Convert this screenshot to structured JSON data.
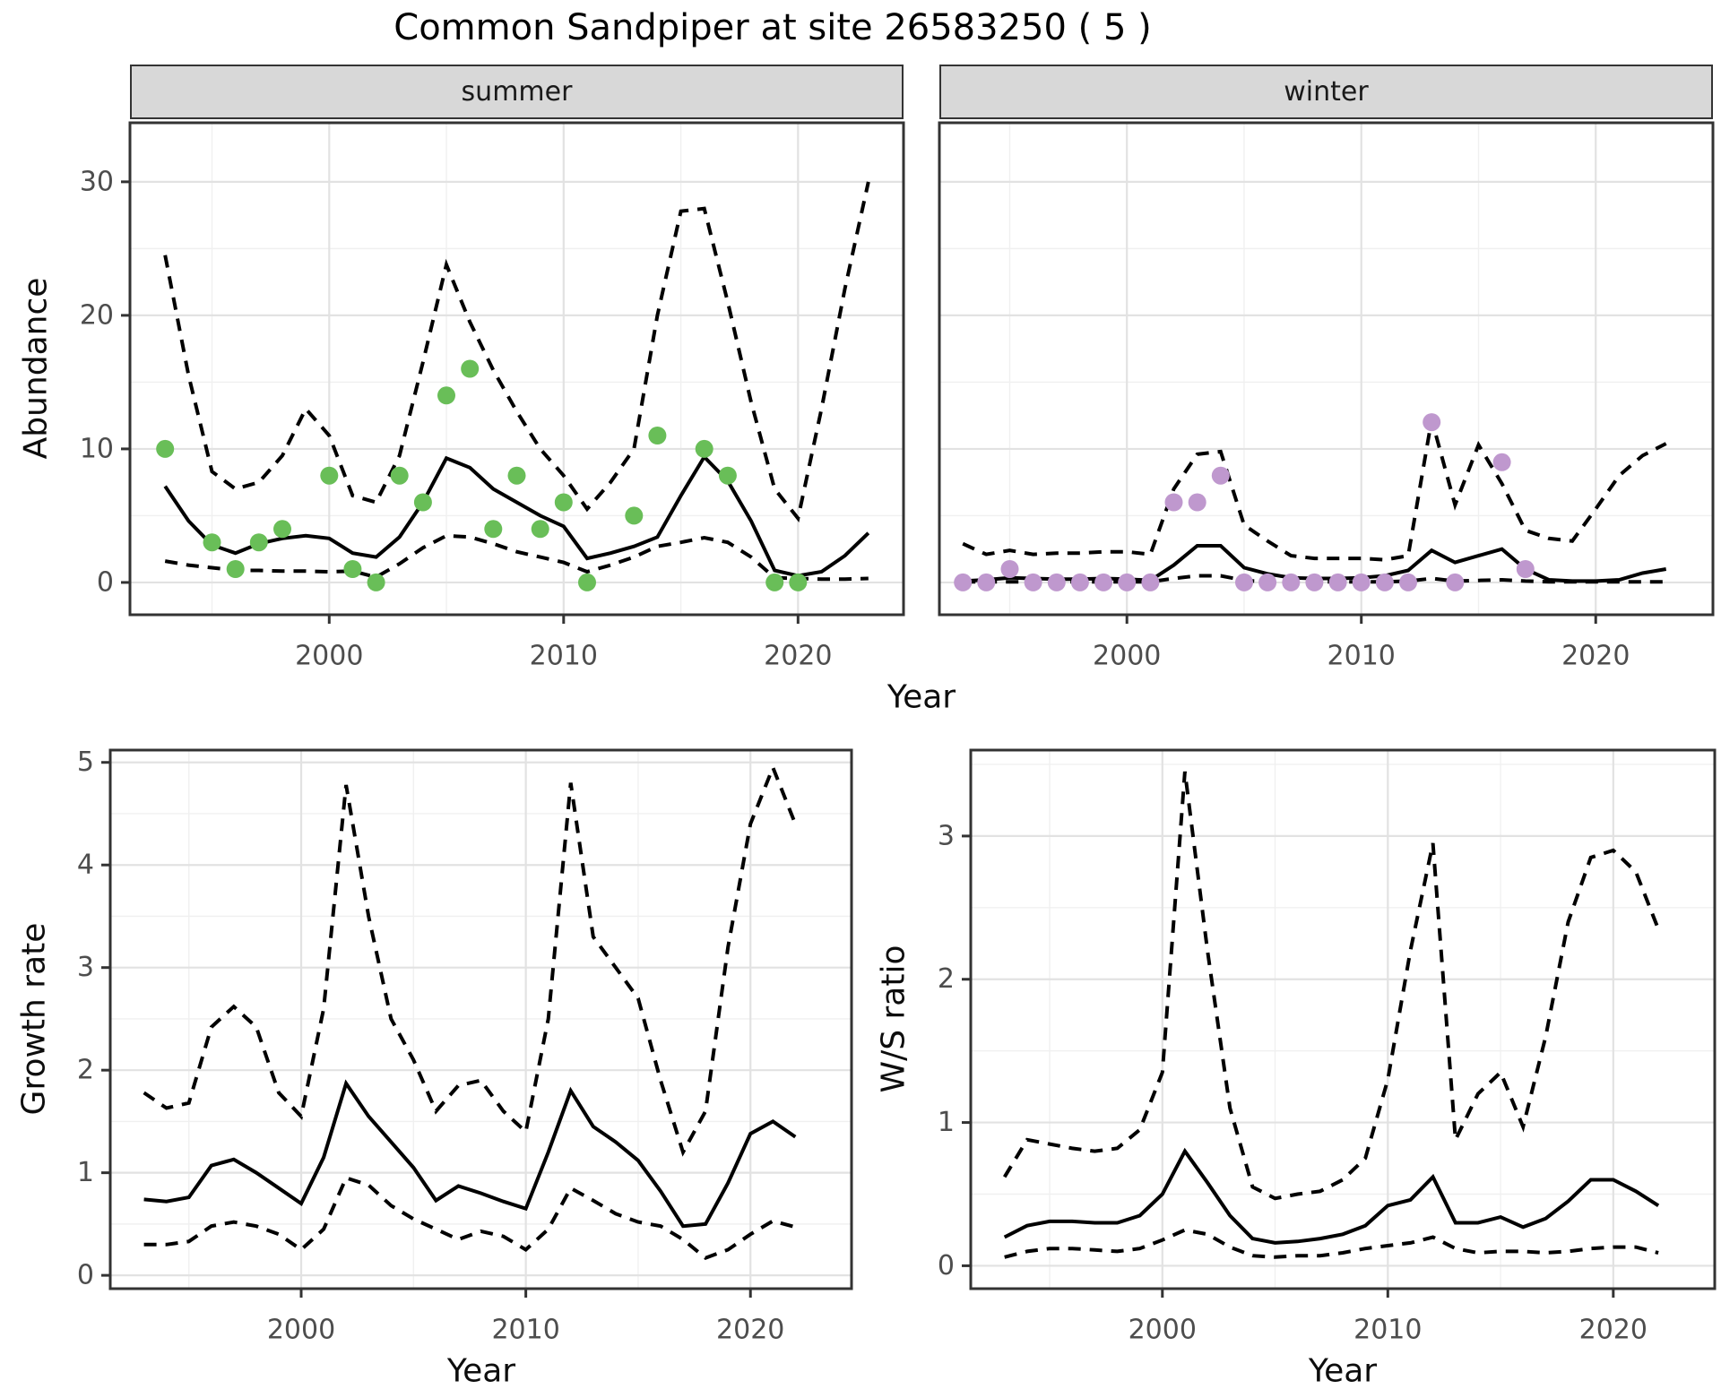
{
  "title": "Common Sandpiper at site 26583250 ( 5 )",
  "facets": {
    "summer": "summer",
    "winter": "winter"
  },
  "axis_labels": {
    "abundance": "Abundance",
    "growth_rate": "Growth rate",
    "ws_ratio": "W/S ratio",
    "year": "Year"
  },
  "colors": {
    "summer_points": "#69BE58",
    "winter_points": "#BF98CE",
    "line": "#000000",
    "grid_major": "#e2e2e2",
    "grid_minor": "#f0f0f0",
    "strip_bg": "#d8d8d8",
    "panel_border": "#333333",
    "tick_text": "#4d4d4d"
  },
  "chart_data": [
    {
      "id": "abundance_summer",
      "type": "line",
      "facet": "summer",
      "xlabel": "Year",
      "ylabel": "Abundance",
      "xlim": [
        1991.5,
        2024.5
      ],
      "ylim": [
        -2.42,
        34.42
      ],
      "x_major": [
        2000,
        2010,
        2020
      ],
      "x_minor": [
        1995,
        2005,
        2015
      ],
      "y_major": [
        0,
        10,
        20,
        30
      ],
      "y_minor": [
        5,
        15,
        25
      ],
      "grid": true,
      "years": [
        1993,
        1994,
        1995,
        1996,
        1997,
        1998,
        1999,
        2000,
        2001,
        2002,
        2003,
        2004,
        2005,
        2006,
        2007,
        2008,
        2009,
        2010,
        2011,
        2012,
        2013,
        2014,
        2015,
        2016,
        2017,
        2018,
        2019,
        2020,
        2021,
        2022,
        2023
      ],
      "series": [
        {
          "name": "mean",
          "style": "solid",
          "values": [
            7.2,
            4.6,
            2.8,
            2.2,
            2.9,
            3.3,
            3.5,
            3.3,
            2.2,
            1.9,
            3.4,
            6.0,
            9.3,
            8.6,
            7.0,
            6.0,
            5.0,
            4.2,
            1.8,
            2.2,
            2.7,
            3.4,
            6.5,
            9.4,
            7.6,
            4.6,
            0.9,
            0.5,
            0.8,
            2.0,
            3.7
          ]
        },
        {
          "name": "upper_ci",
          "style": "dashed",
          "values": [
            24.5,
            15.5,
            8.3,
            7.0,
            7.5,
            9.5,
            13.0,
            11.0,
            6.5,
            6.0,
            9.5,
            16.5,
            23.8,
            19.5,
            15.9,
            12.8,
            10.0,
            8.0,
            5.5,
            7.5,
            10.0,
            20.0,
            27.8,
            28.0,
            21.0,
            13.5,
            7.0,
            4.8,
            13.0,
            22.0,
            30.0
          ]
        },
        {
          "name": "lower_ci",
          "style": "dashed",
          "values": [
            1.6,
            1.3,
            1.1,
            0.9,
            0.9,
            0.85,
            0.85,
            0.8,
            0.85,
            0.4,
            1.4,
            2.6,
            3.5,
            3.4,
            2.9,
            2.3,
            1.9,
            1.5,
            0.8,
            1.3,
            1.9,
            2.7,
            3.0,
            3.35,
            3.0,
            1.9,
            0.35,
            0.3,
            0.25,
            0.25,
            0.3
          ]
        },
        {
          "name": "observed",
          "style": "points",
          "color_key": "summer_points",
          "values": [
            10,
            null,
            3,
            1,
            3,
            4,
            null,
            8,
            1,
            0,
            8,
            6,
            14,
            16,
            4,
            8,
            4,
            6,
            0,
            null,
            5,
            11,
            null,
            10,
            8,
            null,
            0,
            0,
            null,
            null,
            null
          ]
        }
      ]
    },
    {
      "id": "abundance_winter",
      "type": "line",
      "facet": "winter",
      "xlabel": "Year",
      "ylabel": "Abundance",
      "xlim": [
        1992,
        2025
      ],
      "ylim": [
        -2.42,
        34.42
      ],
      "x_major": [
        2000,
        2010,
        2020
      ],
      "x_minor": [
        1995,
        2005,
        2015
      ],
      "y_major": [
        0,
        10,
        20,
        30
      ],
      "y_minor": [
        5,
        15,
        25
      ],
      "grid": true,
      "years": [
        1993,
        1994,
        1995,
        1996,
        1997,
        1998,
        1999,
        2000,
        2001,
        2002,
        2003,
        2004,
        2005,
        2006,
        2007,
        2008,
        2009,
        2010,
        2011,
        2012,
        2013,
        2014,
        2015,
        2016,
        2017,
        2018,
        2019,
        2020,
        2021,
        2022,
        2023
      ],
      "series": [
        {
          "name": "mean",
          "style": "solid",
          "values": [
            0.1,
            0.2,
            0.35,
            0.3,
            0.25,
            0.25,
            0.3,
            0.25,
            0.15,
            1.3,
            2.75,
            2.75,
            1.1,
            0.65,
            0.35,
            0.3,
            0.3,
            0.35,
            0.5,
            0.9,
            2.4,
            1.5,
            2.0,
            2.5,
            1.0,
            0.2,
            0.1,
            0.1,
            0.2,
            0.7,
            1.0
          ]
        },
        {
          "name": "upper_ci",
          "style": "dashed",
          "values": [
            2.9,
            2.1,
            2.4,
            2.1,
            2.2,
            2.2,
            2.3,
            2.3,
            2.1,
            7.0,
            9.6,
            9.8,
            4.3,
            3.1,
            2.0,
            1.8,
            1.8,
            1.8,
            1.7,
            2.0,
            12.2,
            5.8,
            10.3,
            7.4,
            3.9,
            3.3,
            3.1,
            5.5,
            8.0,
            9.5,
            10.4
          ]
        },
        {
          "name": "lower_ci",
          "style": "dashed",
          "values": [
            0.05,
            0.05,
            0.05,
            0.05,
            0.05,
            0.05,
            0.05,
            0.05,
            0.05,
            0.3,
            0.5,
            0.5,
            0.15,
            0.05,
            0.05,
            0.05,
            0.05,
            0.05,
            0.05,
            0.1,
            0.3,
            0.1,
            0.15,
            0.2,
            0.1,
            0.05,
            0.05,
            0.05,
            0.05,
            0.05,
            0.05
          ]
        },
        {
          "name": "observed",
          "style": "points",
          "color_key": "winter_points",
          "values": [
            0,
            0,
            1,
            0,
            0,
            0,
            0,
            0,
            0,
            6,
            6,
            8,
            0,
            0,
            0,
            0,
            0,
            0,
            0,
            0,
            12,
            0,
            null,
            9,
            1,
            null,
            null,
            null,
            null,
            null,
            null
          ]
        }
      ]
    },
    {
      "id": "growth_rate",
      "type": "line",
      "facet": null,
      "xlabel": "Year",
      "ylabel": "Growth rate",
      "xlim": [
        1991.5,
        2024.5
      ],
      "ylim": [
        -0.13,
        5.12
      ],
      "x_major": [
        2000,
        2010,
        2020
      ],
      "x_minor": [
        1995,
        2005,
        2015
      ],
      "y_major": [
        0,
        1,
        2,
        3,
        4,
        5
      ],
      "y_minor": [
        0.5,
        1.5,
        2.5,
        3.5,
        4.5
      ],
      "grid": true,
      "years": [
        1993,
        1994,
        1995,
        1996,
        1997,
        1998,
        1999,
        2000,
        2001,
        2002,
        2003,
        2004,
        2005,
        2006,
        2007,
        2008,
        2009,
        2010,
        2011,
        2012,
        2013,
        2014,
        2015,
        2016,
        2017,
        2018,
        2019,
        2020,
        2021,
        2022
      ],
      "series": [
        {
          "name": "mean",
          "style": "solid",
          "values": [
            0.74,
            0.72,
            0.76,
            1.07,
            1.13,
            1.0,
            0.85,
            0.7,
            1.15,
            1.87,
            1.55,
            1.3,
            1.05,
            0.73,
            0.87,
            0.8,
            0.72,
            0.65,
            1.2,
            1.8,
            1.45,
            1.3,
            1.12,
            0.82,
            0.48,
            0.5,
            0.9,
            1.38,
            1.5,
            1.35
          ]
        },
        {
          "name": "upper_ci",
          "style": "dashed",
          "values": [
            1.78,
            1.63,
            1.68,
            2.42,
            2.62,
            2.42,
            1.78,
            1.55,
            2.6,
            4.78,
            3.5,
            2.5,
            2.1,
            1.6,
            1.85,
            1.9,
            1.6,
            1.4,
            2.5,
            4.8,
            3.3,
            3.0,
            2.7,
            1.9,
            1.2,
            1.6,
            3.2,
            4.4,
            4.95,
            4.4
          ]
        },
        {
          "name": "lower_ci",
          "style": "dashed",
          "values": [
            0.3,
            0.3,
            0.33,
            0.48,
            0.52,
            0.48,
            0.4,
            0.25,
            0.45,
            0.95,
            0.88,
            0.68,
            0.55,
            0.45,
            0.35,
            0.43,
            0.38,
            0.25,
            0.45,
            0.85,
            0.73,
            0.6,
            0.52,
            0.48,
            0.35,
            0.17,
            0.25,
            0.4,
            0.53,
            0.47
          ]
        }
      ]
    },
    {
      "id": "ws_ratio",
      "type": "line",
      "facet": null,
      "xlabel": "Year",
      "ylabel": "W/S ratio",
      "xlim": [
        1991.5,
        2024.5
      ],
      "ylim": [
        -0.16,
        3.6
      ],
      "x_major": [
        2000,
        2010,
        2020
      ],
      "x_minor": [
        1995,
        2005,
        2015
      ],
      "y_major": [
        0,
        1,
        2,
        3
      ],
      "y_minor": [
        0.5,
        1.5,
        2.5,
        3.5
      ],
      "grid": true,
      "years": [
        1993,
        1994,
        1995,
        1996,
        1997,
        1998,
        1999,
        2000,
        2001,
        2002,
        2003,
        2004,
        2005,
        2006,
        2007,
        2008,
        2009,
        2010,
        2011,
        2012,
        2013,
        2014,
        2015,
        2016,
        2017,
        2018,
        2019,
        2020,
        2021,
        2022
      ],
      "series": [
        {
          "name": "mean",
          "style": "solid",
          "values": [
            0.2,
            0.28,
            0.31,
            0.31,
            0.3,
            0.3,
            0.35,
            0.5,
            0.8,
            0.58,
            0.35,
            0.19,
            0.16,
            0.17,
            0.19,
            0.22,
            0.28,
            0.42,
            0.46,
            0.62,
            0.3,
            0.3,
            0.34,
            0.27,
            0.33,
            0.45,
            0.6,
            0.6,
            0.52,
            0.42
          ]
        },
        {
          "name": "upper_ci",
          "style": "dashed",
          "values": [
            0.62,
            0.88,
            0.85,
            0.82,
            0.8,
            0.82,
            0.95,
            1.35,
            3.45,
            2.2,
            1.1,
            0.55,
            0.47,
            0.5,
            0.52,
            0.6,
            0.75,
            1.3,
            2.2,
            2.95,
            0.88,
            1.2,
            1.35,
            0.97,
            1.6,
            2.4,
            2.85,
            2.9,
            2.75,
            2.35
          ]
        },
        {
          "name": "lower_ci",
          "style": "dashed",
          "values": [
            0.06,
            0.1,
            0.12,
            0.12,
            0.11,
            0.1,
            0.12,
            0.18,
            0.25,
            0.22,
            0.13,
            0.07,
            0.06,
            0.07,
            0.07,
            0.09,
            0.12,
            0.14,
            0.16,
            0.2,
            0.12,
            0.09,
            0.1,
            0.1,
            0.09,
            0.1,
            0.12,
            0.13,
            0.13,
            0.09
          ]
        }
      ]
    }
  ]
}
